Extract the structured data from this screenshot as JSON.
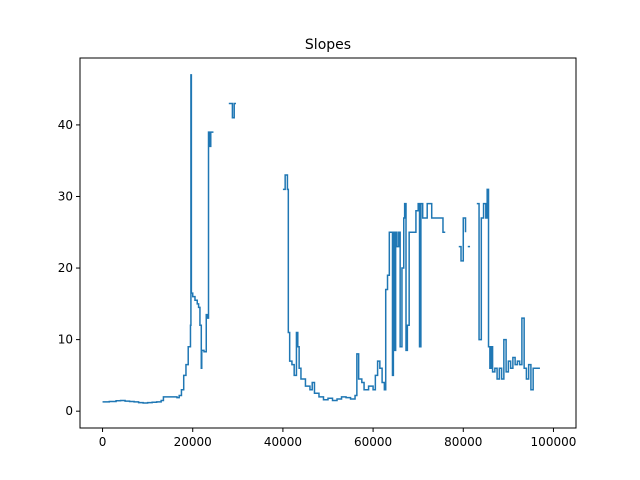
{
  "chart_data": {
    "type": "line",
    "title": "Slopes",
    "xlabel": "",
    "ylabel": "",
    "xlim": [
      -5000,
      105000
    ],
    "ylim": [
      -2.35,
      49.35
    ],
    "xticks": [
      0,
      20000,
      40000,
      60000,
      80000,
      100000
    ],
    "yticks": [
      0,
      10,
      20,
      30,
      40
    ],
    "grid": false,
    "line_color": "#1f77b4",
    "series": [
      {
        "segments": [
          [
            [
              0,
              1.3
            ],
            [
              1500,
              1.35
            ],
            [
              3000,
              1.45
            ],
            [
              4000,
              1.5
            ],
            [
              5000,
              1.4
            ],
            [
              6000,
              1.35
            ],
            [
              7000,
              1.3
            ],
            [
              8000,
              1.2
            ],
            [
              9000,
              1.15
            ],
            [
              10000,
              1.2
            ],
            [
              11000,
              1.25
            ],
            [
              12000,
              1.3
            ],
            [
              13000,
              1.5
            ],
            [
              13500,
              2.0
            ],
            [
              15000,
              2.0
            ],
            [
              16500,
              1.9
            ],
            [
              17000,
              2.2
            ],
            [
              17500,
              3.0
            ],
            [
              18000,
              5.0
            ],
            [
              18500,
              6.5
            ],
            [
              19000,
              9.0
            ],
            [
              19500,
              12.0
            ],
            [
              19600,
              47.0
            ],
            [
              19700,
              16.5
            ],
            [
              20000,
              16.0
            ],
            [
              20500,
              15.5
            ],
            [
              21000,
              15.0
            ],
            [
              21300,
              14.5
            ],
            [
              21600,
              12.0
            ],
            [
              21900,
              6.0
            ],
            [
              22000,
              8.5
            ],
            [
              22500,
              8.3
            ],
            [
              23000,
              13.5
            ],
            [
              23300,
              13.0
            ],
            [
              23500,
              39.0
            ],
            [
              23800,
              37.0
            ],
            [
              24000,
              39.0
            ],
            [
              24600,
              39.0
            ]
          ],
          [
            [
              28000,
              43.0
            ],
            [
              28500,
              43.0
            ],
            [
              28800,
              41.0
            ],
            [
              29200,
              43.0
            ],
            [
              29600,
              43.0
            ]
          ],
          [
            [
              40000,
              31.0
            ],
            [
              40500,
              33.0
            ],
            [
              41000,
              31.0
            ],
            [
              41200,
              11.0
            ],
            [
              41500,
              7.0
            ],
            [
              42000,
              6.5
            ],
            [
              42500,
              5.0
            ],
            [
              43000,
              11.0
            ],
            [
              43300,
              9.0
            ],
            [
              43600,
              6.0
            ],
            [
              44000,
              4.5
            ],
            [
              45000,
              3.5
            ],
            [
              46000,
              3.0
            ],
            [
              46500,
              4.0
            ],
            [
              47000,
              2.5
            ],
            [
              48000,
              2.0
            ],
            [
              49000,
              1.6
            ],
            [
              50000,
              1.8
            ],
            [
              51000,
              1.5
            ],
            [
              52000,
              1.7
            ],
            [
              53000,
              2.0
            ],
            [
              54000,
              1.9
            ],
            [
              55000,
              1.7
            ],
            [
              56000,
              2.2
            ],
            [
              56400,
              8.0
            ],
            [
              56800,
              4.5
            ],
            [
              57500,
              4.0
            ],
            [
              58000,
              3.0
            ],
            [
              59000,
              3.5
            ],
            [
              60000,
              3.0
            ],
            [
              60500,
              5.0
            ],
            [
              61000,
              7.0
            ],
            [
              61500,
              6.0
            ],
            [
              62000,
              4.0
            ],
            [
              62500,
              3.0
            ],
            [
              62800,
              17.0
            ],
            [
              63200,
              19.0
            ],
            [
              63600,
              25.0
            ],
            [
              64000,
              25.0
            ],
            [
              64300,
              5.0
            ],
            [
              64500,
              25.0
            ],
            [
              64800,
              8.5
            ],
            [
              65000,
              25.0
            ],
            [
              65300,
              23.0
            ],
            [
              65700,
              25.0
            ],
            [
              66000,
              9.0
            ],
            [
              66400,
              20.0
            ],
            [
              66800,
              27.0
            ],
            [
              67000,
              29.0
            ],
            [
              67300,
              8.5
            ],
            [
              67600,
              12.0
            ],
            [
              68000,
              25.0
            ],
            [
              69000,
              25.0
            ],
            [
              69500,
              28.0
            ],
            [
              70000,
              29.0
            ],
            [
              70300,
              9.0
            ],
            [
              70600,
              29.0
            ],
            [
              71000,
              27.0
            ],
            [
              72000,
              29.0
            ],
            [
              73000,
              27.0
            ],
            [
              74000,
              27.0
            ],
            [
              75000,
              27.0
            ],
            [
              75500,
              25.0
            ],
            [
              76000,
              25.0
            ]
          ],
          [
            [
              79000,
              23.0
            ],
            [
              79500,
              21.0
            ],
            [
              80000,
              27.0
            ],
            [
              80500,
              25.0
            ]
          ],
          [
            [
              81000,
              23.0
            ],
            [
              81500,
              23.0
            ]
          ],
          [
            [
              83000,
              29.0
            ],
            [
              83500,
              10.0
            ],
            [
              84000,
              27.0
            ],
            [
              84500,
              29.0
            ],
            [
              85000,
              27.0
            ],
            [
              85300,
              31.0
            ],
            [
              85600,
              9.0
            ],
            [
              85900,
              6.0
            ],
            [
              86200,
              9.0
            ],
            [
              86500,
              5.5
            ],
            [
              87000,
              6.0
            ],
            [
              87500,
              4.5
            ],
            [
              88000,
              6.0
            ],
            [
              88500,
              4.5
            ],
            [
              89000,
              10.0
            ],
            [
              89500,
              5.5
            ],
            [
              90000,
              7.0
            ],
            [
              90500,
              6.0
            ],
            [
              91000,
              7.5
            ],
            [
              91500,
              6.5
            ],
            [
              92000,
              7.0
            ],
            [
              92500,
              6.5
            ],
            [
              93000,
              13.0
            ],
            [
              93500,
              6.0
            ],
            [
              94000,
              4.5
            ],
            [
              94500,
              6.5
            ],
            [
              95000,
              3.0
            ],
            [
              95500,
              6.0
            ],
            [
              97000,
              6.0
            ]
          ]
        ]
      }
    ]
  }
}
